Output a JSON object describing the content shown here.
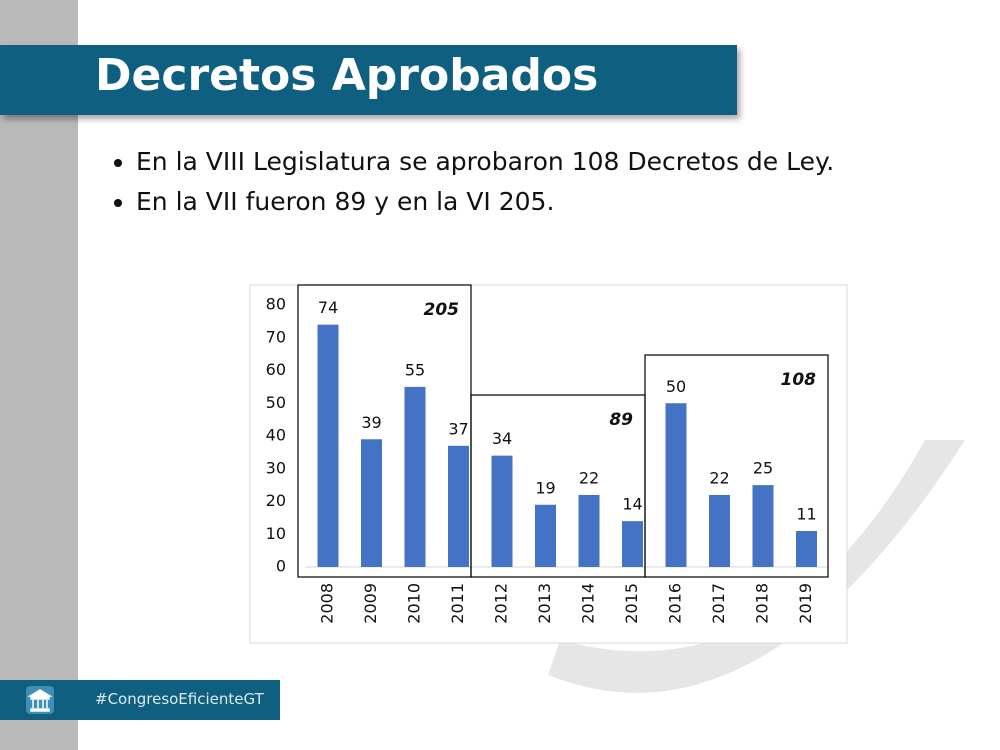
{
  "header": {
    "title": "Decretos Aprobados"
  },
  "bullets": [
    "En la VIII Legislatura se aprobaron 108 Decretos de Ley.",
    "En la VII fueron 89 y en la VI 205."
  ],
  "footer": {
    "hashtag": "#CongresoEficienteGT"
  },
  "chart_data": {
    "type": "bar",
    "categories": [
      "2008",
      "2009",
      "2010",
      "2011",
      "2012",
      "2013",
      "2014",
      "2015",
      "2016",
      "2017",
      "2018",
      "2019"
    ],
    "values": [
      74,
      39,
      55,
      37,
      34,
      19,
      22,
      14,
      50,
      22,
      25,
      11
    ],
    "color": "#4472c4",
    "ylim": [
      0,
      80
    ],
    "yticks": [
      0,
      10,
      20,
      30,
      40,
      50,
      60,
      70,
      80
    ],
    "annotations": [
      "205",
      "89",
      "108"
    ]
  }
}
